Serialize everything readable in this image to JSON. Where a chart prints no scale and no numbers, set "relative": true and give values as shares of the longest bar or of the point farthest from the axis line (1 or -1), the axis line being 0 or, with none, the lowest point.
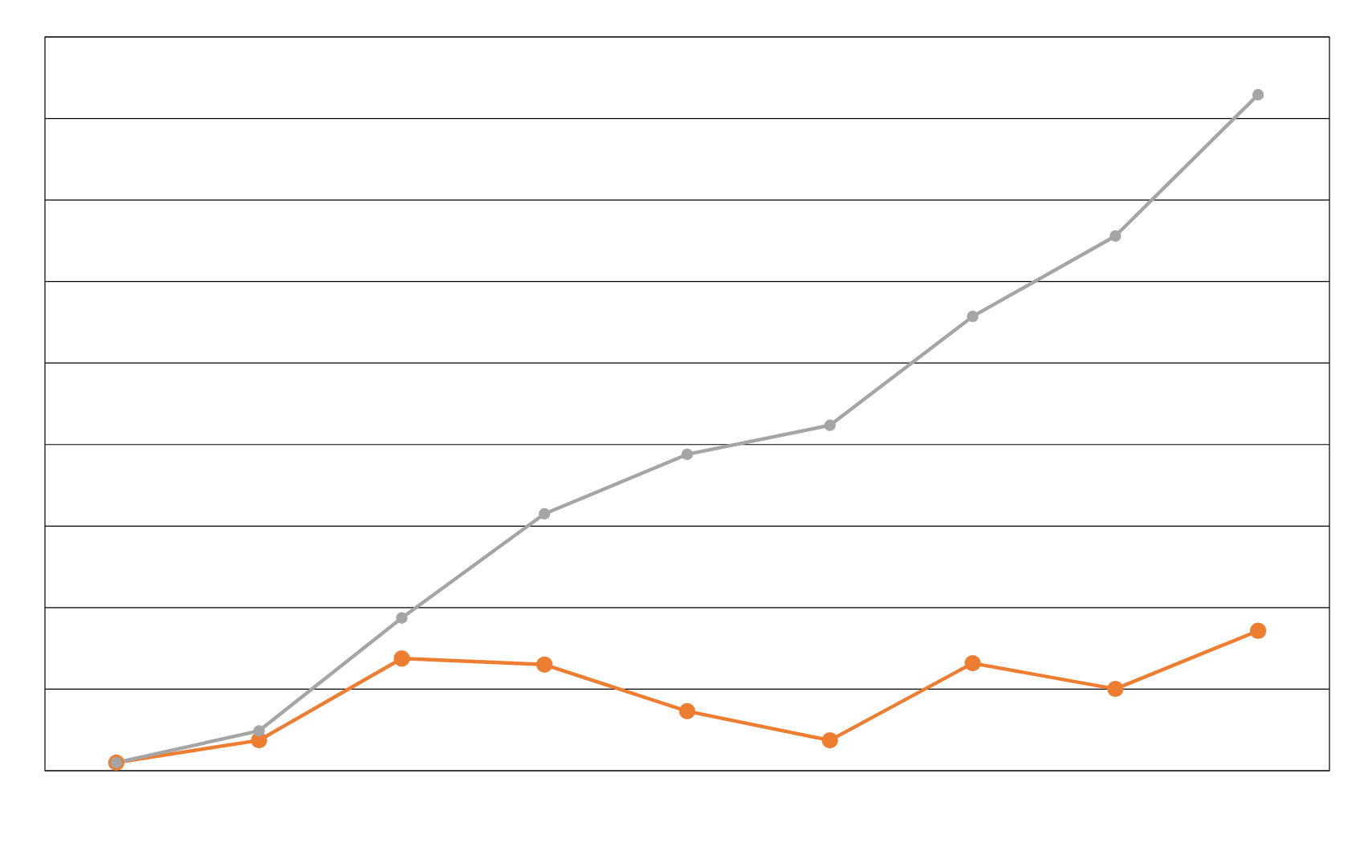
{
  "chart_data": {
    "type": "line",
    "relative": true,
    "grid": "y",
    "marker": "circle",
    "line_style": "solid",
    "categories": [
      null,
      null,
      null,
      null,
      null,
      null,
      null,
      null,
      null
    ],
    "series": [
      {
        "color": "#ed7d31",
        "values": [
          0.012,
          0.045,
          0.166,
          0.157,
          0.088,
          0.045,
          0.159,
          0.121,
          0.207
        ]
      },
      {
        "color": "#a5a5a5",
        "values": [
          0.012,
          0.059,
          0.226,
          0.38,
          0.468,
          0.511,
          0.672,
          0.791,
          1
        ]
      }
    ]
  }
}
